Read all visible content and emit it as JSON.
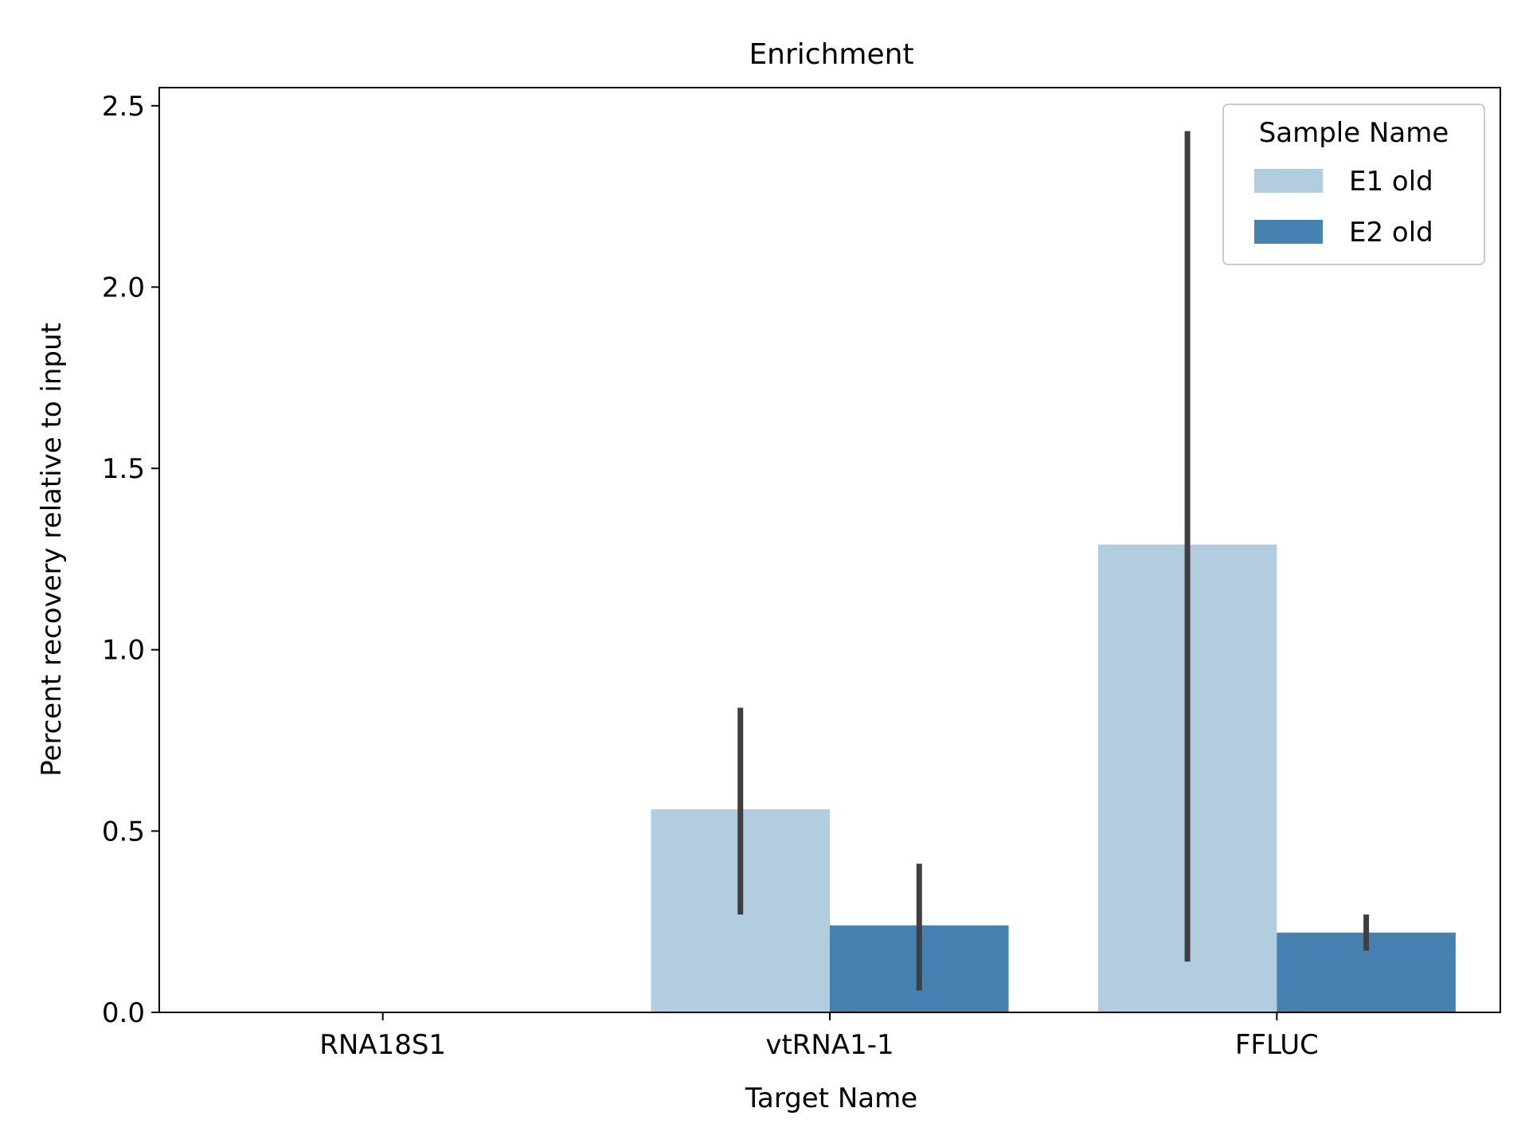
{
  "chart_data": {
    "type": "bar",
    "title": "Enrichment",
    "xlabel": "Target Name",
    "ylabel": "Percent recovery relative to input",
    "categories": [
      "RNA18S1",
      "vtRNA1-1",
      "FFLUC"
    ],
    "ylim": [
      0,
      2.55
    ],
    "yticks": [
      0.0,
      0.5,
      1.0,
      1.5,
      2.0,
      2.5
    ],
    "ytick_labels": [
      "0.0",
      "0.5",
      "1.0",
      "1.5",
      "2.0",
      "2.5"
    ],
    "grid": false,
    "legend": {
      "title": "Sample Name",
      "placement": "top-right"
    },
    "series": [
      {
        "name": "E1 old",
        "color": "#b3cde0",
        "values": [
          null,
          0.56,
          1.29
        ],
        "error_low": [
          null,
          0.27,
          0.14
        ],
        "error_high": [
          null,
          0.84,
          2.43
        ]
      },
      {
        "name": "E2 old",
        "color": "#4682b1",
        "values": [
          null,
          0.24,
          0.22
        ],
        "error_low": [
          null,
          0.06,
          0.17
        ],
        "error_high": [
          null,
          0.41,
          0.27
        ]
      }
    ],
    "error_bar_color": "#3f3f3f"
  }
}
